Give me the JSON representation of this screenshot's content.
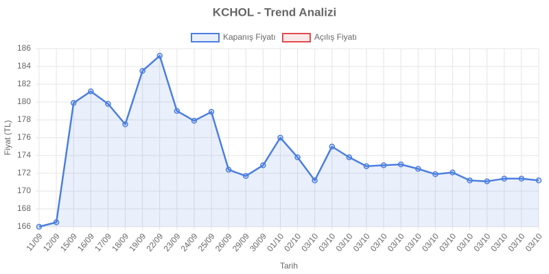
{
  "chart_data": {
    "type": "line",
    "title": "KCHOL - Trend Analizi",
    "x_label": "Tarih",
    "y_label": "Fiyat (TL)",
    "categories": [
      "11/09",
      "12/09",
      "15/09",
      "16/09",
      "17/09",
      "18/09",
      "19/09",
      "22/09",
      "23/09",
      "24/09",
      "25/09",
      "26/09",
      "29/09",
      "30/09",
      "01/10",
      "02/10",
      "03/10",
      "03/10",
      "03/10",
      "03/10",
      "03/10",
      "03/10",
      "03/10",
      "03/10",
      "03/10",
      "03/10",
      "03/10",
      "03/10",
      "03/10",
      "03/10"
    ],
    "series": [
      {
        "name": "Kapanış Fiyatı",
        "color": "#4a7ee0",
        "fill": "rgba(74,126,224,0.12)",
        "values": [
          166,
          166.5,
          179.9,
          181.2,
          179.8,
          177.5,
          183.5,
          185.2,
          179,
          177.9,
          178.9,
          172.4,
          171.7,
          172.9,
          176,
          173.8,
          171.2,
          175,
          173.8,
          172.8,
          172.9,
          173,
          172.5,
          171.9,
          172.1,
          171.2,
          171.1,
          171.4,
          171.4,
          171.2
        ]
      },
      {
        "name": "Açılış Fiyatı",
        "color": "#e04a4a",
        "fill": "rgba(224,74,74,0.12)",
        "values": [
          null,
          null,
          null,
          null,
          null,
          null,
          null,
          null,
          null,
          null,
          null,
          null,
          null,
          null,
          null,
          null,
          null,
          null,
          null,
          null,
          null,
          null,
          null,
          null,
          null,
          null,
          null,
          null,
          null,
          null
        ]
      }
    ],
    "ylim": [
      166,
      186
    ],
    "yticks": [
      166,
      168,
      170,
      172,
      174,
      176,
      178,
      180,
      182,
      184,
      186
    ],
    "grid": true,
    "legend": "top"
  }
}
